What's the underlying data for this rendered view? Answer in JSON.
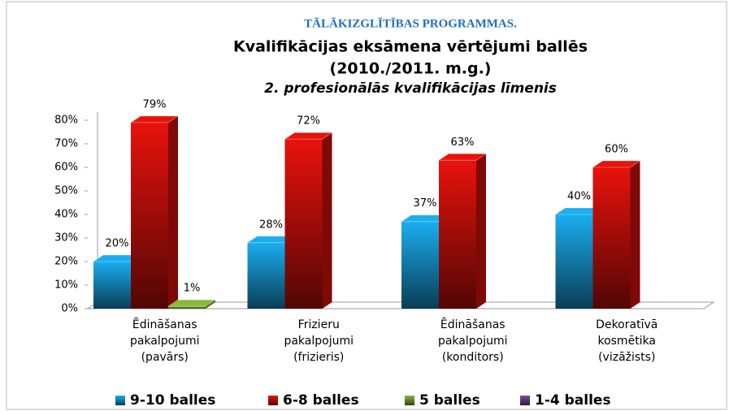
{
  "chart_data": {
    "type": "bar3d",
    "header": "TĀLĀKIZGLĪTĪBAS PROGRAMMAS.",
    "title": "Kvalifikācijas eksāmena vērtējumi ballēs",
    "title_line2": "(2010./2011. m.g.)",
    "subtitle": "2. profesionālās kvalifikācijas līmenis",
    "categories": [
      [
        "Ēdināšanas",
        "pakalpojumi",
        "(pavārs)"
      ],
      [
        "Frizieru",
        "pakalpojumi",
        "(frizieris)"
      ],
      [
        "Ēdināšanas",
        "pakalpojumi",
        "(konditors)"
      ],
      [
        "Dekoratīvā",
        "kosmētika",
        "(vizāžists)"
      ]
    ],
    "series": [
      {
        "name": "9-10 balles",
        "color": "#1aaef0",
        "values": [
          20,
          28,
          37,
          40
        ],
        "value_labels": [
          "20%",
          "28%",
          "37%",
          "40%"
        ]
      },
      {
        "name": "6-8 balles",
        "color": "#e8120c",
        "values": [
          79,
          72,
          63,
          60
        ],
        "value_labels": [
          "79%",
          "72%",
          "63%",
          "60%"
        ]
      },
      {
        "name": "5 balles",
        "color": "#8ab83a",
        "values": [
          1,
          null,
          null,
          null
        ],
        "value_labels": [
          "1%",
          null,
          null,
          null
        ]
      },
      {
        "name": "1-4 balles",
        "color": "#7a4fa0",
        "values": [
          null,
          null,
          null,
          null
        ],
        "value_labels": [
          null,
          null,
          null,
          null
        ]
      }
    ],
    "ylim": [
      0,
      80
    ],
    "yticks": [
      {
        "value": 0,
        "label": "0%"
      },
      {
        "value": 10,
        "label": "10%"
      },
      {
        "value": 20,
        "label": "20%"
      },
      {
        "value": 30,
        "label": "30%"
      },
      {
        "value": 40,
        "label": "40%"
      },
      {
        "value": 50,
        "label": "50%"
      },
      {
        "value": 60,
        "label": "60%"
      },
      {
        "value": 70,
        "label": "70%"
      },
      {
        "value": 80,
        "label": "80%"
      }
    ],
    "legend": "bottom"
  }
}
